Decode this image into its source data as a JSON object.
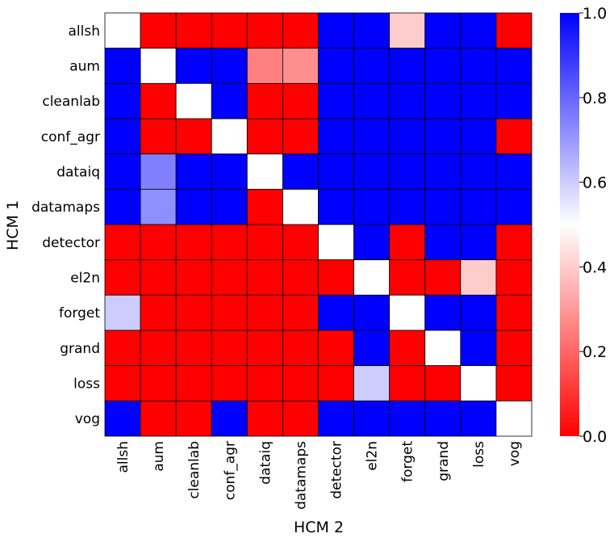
{
  "chart_data": {
    "type": "heatmap",
    "title": "",
    "xlabel": "HCM 2",
    "ylabel": "HCM 1",
    "x_categories": [
      "allsh",
      "aum",
      "cleanlab",
      "conf_agr",
      "dataiq",
      "datamaps",
      "detector",
      "el2n",
      "forget",
      "grand",
      "loss",
      "vog"
    ],
    "y_categories": [
      "allsh",
      "aum",
      "cleanlab",
      "conf_agr",
      "dataiq",
      "datamaps",
      "detector",
      "el2n",
      "forget",
      "grand",
      "loss",
      "vog"
    ],
    "values": [
      [
        0.5,
        0.0,
        0.0,
        0.0,
        0.0,
        0.0,
        1.0,
        1.0,
        0.4,
        1.0,
        1.0,
        0.0
      ],
      [
        1.0,
        0.5,
        1.0,
        1.0,
        0.25,
        0.28,
        1.0,
        1.0,
        1.0,
        1.0,
        1.0,
        1.0
      ],
      [
        1.0,
        0.0,
        0.5,
        1.0,
        0.0,
        0.0,
        1.0,
        1.0,
        1.0,
        1.0,
        1.0,
        1.0
      ],
      [
        1.0,
        0.0,
        0.0,
        0.5,
        0.0,
        0.0,
        1.0,
        1.0,
        1.0,
        1.0,
        1.0,
        0.0
      ],
      [
        1.0,
        0.75,
        1.0,
        1.0,
        0.5,
        1.0,
        1.0,
        1.0,
        1.0,
        1.0,
        1.0,
        1.0
      ],
      [
        1.0,
        0.72,
        1.0,
        1.0,
        0.0,
        0.5,
        1.0,
        1.0,
        1.0,
        1.0,
        1.0,
        1.0
      ],
      [
        0.0,
        0.0,
        0.0,
        0.0,
        0.0,
        0.0,
        0.5,
        1.0,
        0.0,
        1.0,
        1.0,
        0.0
      ],
      [
        0.0,
        0.0,
        0.0,
        0.0,
        0.0,
        0.0,
        0.0,
        0.5,
        0.0,
        0.0,
        0.4,
        0.0
      ],
      [
        0.6,
        0.0,
        0.0,
        0.0,
        0.0,
        0.0,
        1.0,
        1.0,
        0.5,
        1.0,
        1.0,
        0.0
      ],
      [
        0.0,
        0.0,
        0.0,
        0.0,
        0.0,
        0.0,
        0.0,
        1.0,
        0.0,
        0.5,
        1.0,
        0.0
      ],
      [
        0.0,
        0.0,
        0.0,
        0.0,
        0.0,
        0.0,
        0.0,
        0.6,
        0.0,
        0.0,
        0.5,
        0.0
      ],
      [
        1.0,
        0.0,
        0.0,
        1.0,
        0.0,
        0.0,
        1.0,
        1.0,
        1.0,
        1.0,
        1.0,
        0.5
      ]
    ],
    "colorbar": {
      "colormap": "bwr_r",
      "range": [
        0.0,
        1.0
      ],
      "ticks": [
        "0.0",
        "0.2",
        "0.4",
        "0.6",
        "0.8",
        "1.0"
      ],
      "colors": {
        "low": "#ff0000",
        "mid": "#ffffff",
        "high": "#0000ff"
      }
    },
    "grid": true
  }
}
